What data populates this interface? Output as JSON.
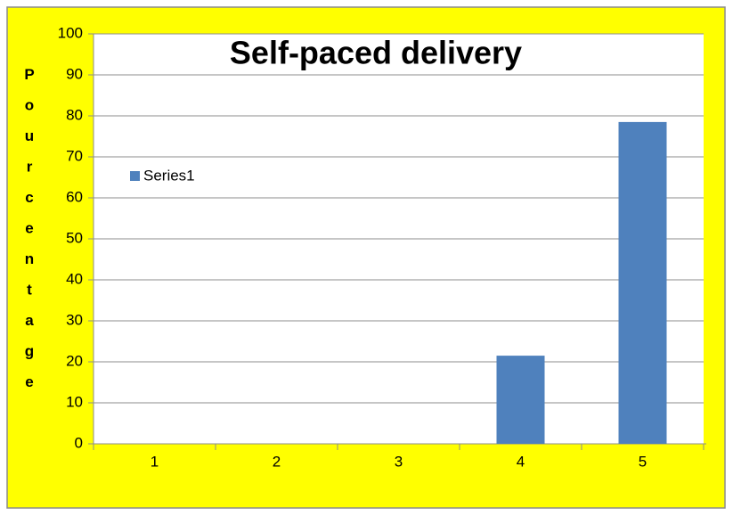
{
  "chart_data": {
    "type": "bar",
    "title": "Self-paced delivery",
    "y_label": "Pourcentage",
    "categories": [
      "1",
      "2",
      "3",
      "4",
      "5"
    ],
    "series": [
      {
        "name": "Series1",
        "color": "#4f81bd",
        "values": [
          0,
          0,
          0,
          21.5,
          78.5
        ]
      }
    ],
    "ylim": [
      0,
      100
    ],
    "yticks": [
      0,
      10,
      20,
      30,
      40,
      50,
      60,
      70,
      80,
      90,
      100
    ],
    "grid": true,
    "legend": "left"
  }
}
